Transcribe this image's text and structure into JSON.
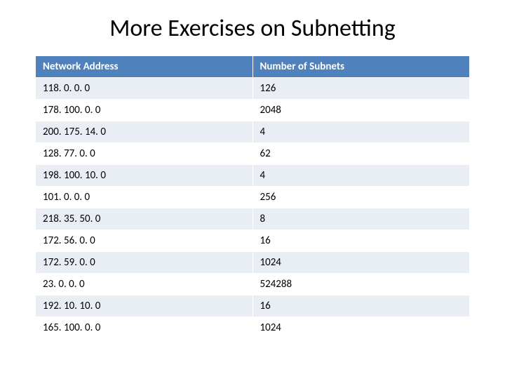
{
  "title": "More Exercises on Subnetting",
  "table": {
    "type": "table",
    "header_bg_color": "#4f81bd",
    "header_text_color": "#ffffff",
    "row_odd_bg": "#e9edf4",
    "row_even_bg": "#ffffff",
    "title_fontsize": 34,
    "cell_fontsize": 15,
    "columns": [
      "Network Address",
      "Number of Subnets"
    ],
    "rows": [
      [
        "118. 0. 0. 0",
        "126"
      ],
      [
        "178. 100. 0. 0",
        "2048"
      ],
      [
        "200. 175. 14. 0",
        "4"
      ],
      [
        "128. 77. 0. 0",
        "62"
      ],
      [
        "198. 100. 10. 0",
        "4"
      ],
      [
        "101. 0. 0. 0",
        "256"
      ],
      [
        "218. 35. 50. 0",
        "8"
      ],
      [
        "172. 56. 0. 0",
        "16"
      ],
      [
        "172. 59. 0. 0",
        "1024"
      ],
      [
        "23. 0. 0. 0",
        "524288"
      ],
      [
        "192. 10. 10. 0",
        "16"
      ],
      [
        "165. 100. 0. 0",
        "1024"
      ]
    ]
  }
}
